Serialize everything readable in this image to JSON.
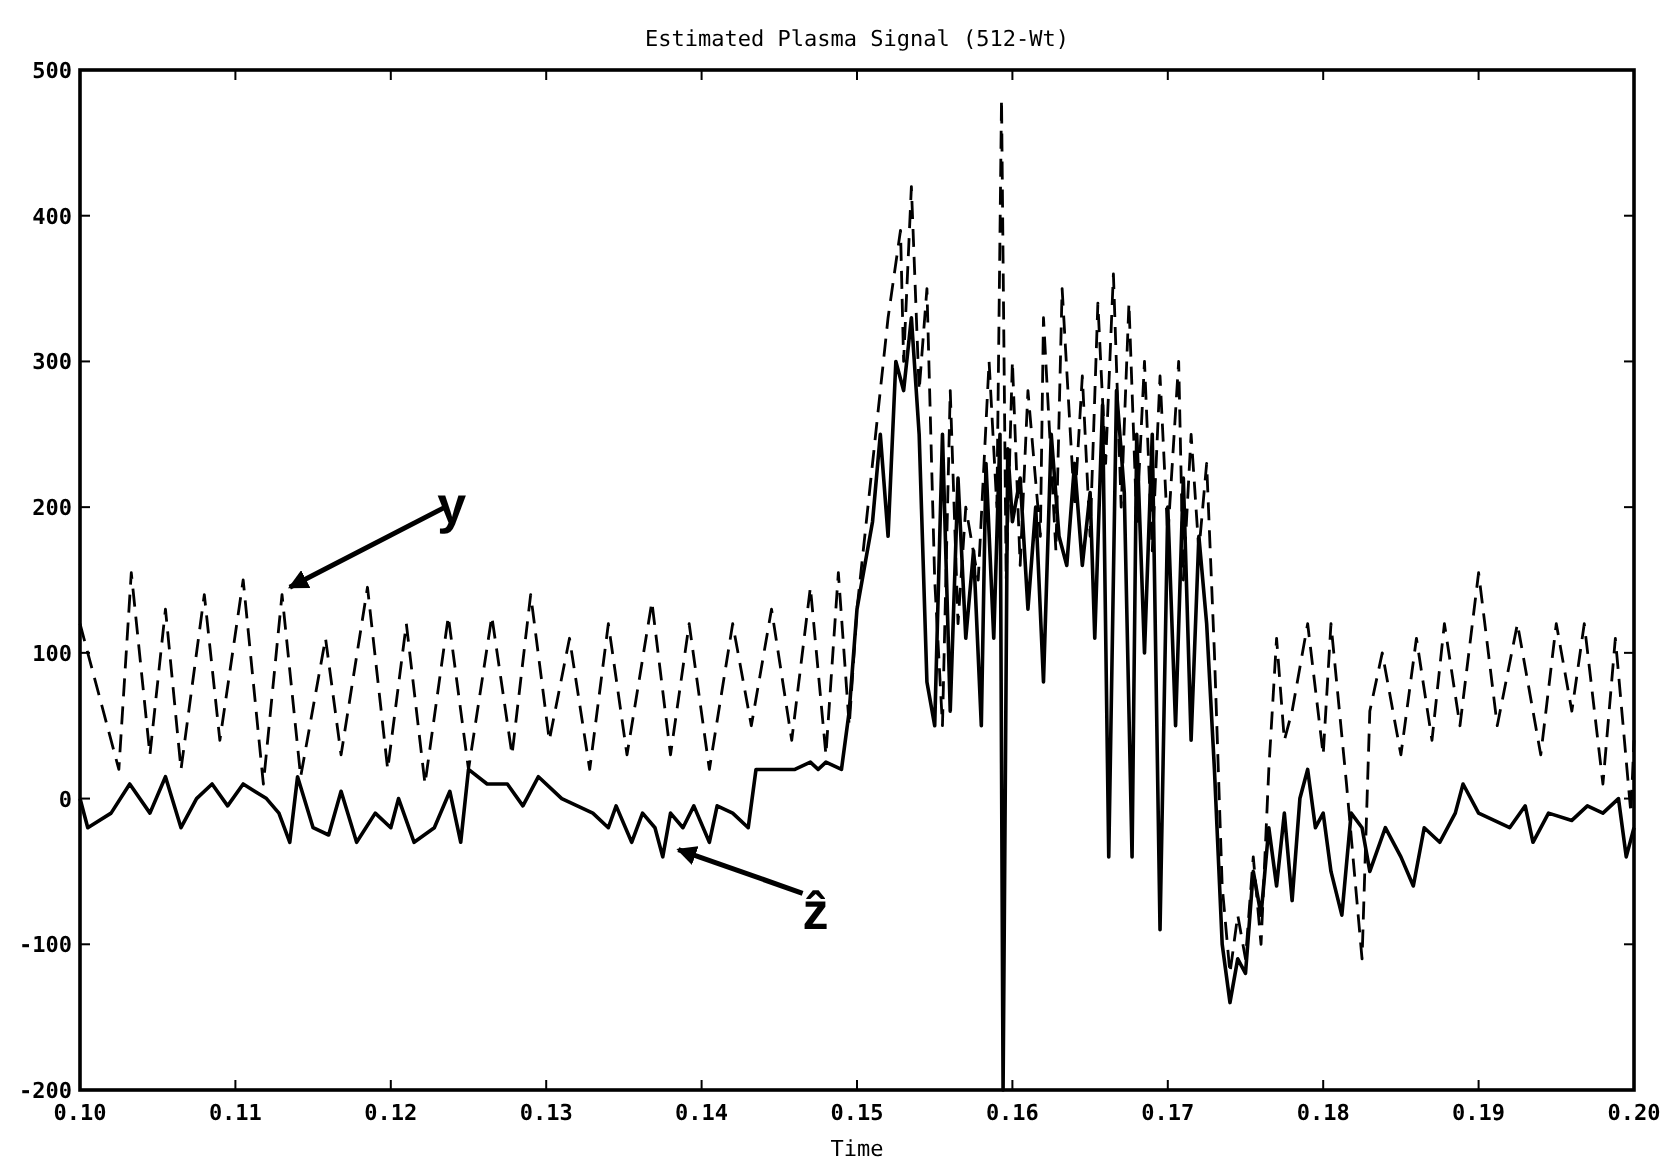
{
  "chart_data": {
    "type": "line",
    "title": "Estimated Plasma Signal (512-Wt)",
    "xlabel": "Time",
    "legend": false,
    "grid": false,
    "xlim": [
      0.1,
      0.2
    ],
    "xticks": [
      {
        "value": 0.1,
        "label": "0.10"
      },
      {
        "value": 0.11,
        "label": "0.11"
      },
      {
        "value": 0.12,
        "label": "0.12"
      },
      {
        "value": 0.13,
        "label": "0.13"
      },
      {
        "value": 0.14,
        "label": "0.14"
      },
      {
        "value": 0.15,
        "label": "0.15"
      },
      {
        "value": 0.16,
        "label": "0.16"
      },
      {
        "value": 0.17,
        "label": "0.17"
      },
      {
        "value": 0.18,
        "label": "0.18"
      },
      {
        "value": 0.19,
        "label": "0.19"
      },
      {
        "value": 0.2,
        "label": "0.20"
      }
    ],
    "ylim": [
      -200,
      500
    ],
    "yticks": [
      -200,
      -100,
      0,
      100,
      200,
      300,
      400,
      500
    ],
    "series": [
      {
        "name": "y",
        "color": "#000000",
        "line_style": "dashed",
        "x": [
          0.1,
          0.1015,
          0.1025,
          0.1033,
          0.1045,
          0.1055,
          0.1065,
          0.108,
          0.109,
          0.1105,
          0.1118,
          0.113,
          0.1142,
          0.1158,
          0.1168,
          0.1185,
          0.1198,
          0.121,
          0.1222,
          0.1237,
          0.125,
          0.1265,
          0.1278,
          0.129,
          0.1302,
          0.1315,
          0.1328,
          0.134,
          0.1352,
          0.1368,
          0.138,
          0.1392,
          0.1405,
          0.142,
          0.1432,
          0.1445,
          0.1458,
          0.147,
          0.148,
          0.1488,
          0.1495,
          0.15,
          0.151,
          0.152,
          0.1528,
          0.153,
          0.1535,
          0.154,
          0.1545,
          0.155,
          0.1555,
          0.156,
          0.1565,
          0.157,
          0.1578,
          0.1585,
          0.159,
          0.1593,
          0.1596,
          0.16,
          0.1605,
          0.161,
          0.1618,
          0.162,
          0.1628,
          0.1632,
          0.164,
          0.1645,
          0.165,
          0.1655,
          0.166,
          0.1665,
          0.167,
          0.1675,
          0.168,
          0.1685,
          0.169,
          0.1695,
          0.17,
          0.1707,
          0.171,
          0.1715,
          0.172,
          0.1725,
          0.173,
          0.1735,
          0.174,
          0.1745,
          0.175,
          0.1755,
          0.176,
          0.1765,
          0.177,
          0.1775,
          0.178,
          0.179,
          0.18,
          0.1805,
          0.1815,
          0.1825,
          0.183,
          0.1838,
          0.185,
          0.186,
          0.187,
          0.1878,
          0.1888,
          0.19,
          0.1912,
          0.1925,
          0.194,
          0.195,
          0.196,
          0.1968,
          0.198,
          0.1988,
          0.1998,
          0.2
        ],
        "values": [
          120,
          60,
          20,
          155,
          30,
          130,
          20,
          140,
          40,
          150,
          10,
          140,
          15,
          110,
          30,
          145,
          20,
          120,
          10,
          125,
          20,
          125,
          30,
          140,
          40,
          110,
          20,
          120,
          30,
          135,
          30,
          120,
          20,
          120,
          50,
          130,
          40,
          145,
          30,
          155,
          50,
          130,
          230,
          330,
          390,
          300,
          420,
          280,
          350,
          150,
          50,
          280,
          120,
          200,
          150,
          300,
          200,
          480,
          150,
          300,
          160,
          280,
          180,
          330,
          170,
          350,
          200,
          290,
          180,
          340,
          230,
          360,
          200,
          340,
          190,
          300,
          170,
          290,
          180,
          300,
          150,
          250,
          170,
          230,
          100,
          -60,
          -120,
          -80,
          -110,
          -40,
          -100,
          20,
          110,
          40,
          60,
          120,
          30,
          120,
          10,
          -110,
          60,
          100,
          30,
          110,
          40,
          120,
          50,
          155,
          50,
          120,
          30,
          120,
          60,
          120,
          10,
          110,
          -10,
          40
        ]
      },
      {
        "name": "ẑ",
        "color": "#000000",
        "line_style": "solid",
        "x": [
          0.1,
          0.1005,
          0.102,
          0.1032,
          0.1045,
          0.1055,
          0.1065,
          0.1075,
          0.1085,
          0.1095,
          0.1105,
          0.112,
          0.1128,
          0.1135,
          0.114,
          0.115,
          0.116,
          0.1168,
          0.1178,
          0.119,
          0.12,
          0.1205,
          0.1215,
          0.1228,
          0.1238,
          0.1245,
          0.125,
          0.1262,
          0.1275,
          0.1285,
          0.1295,
          0.131,
          0.132,
          0.133,
          0.134,
          0.1345,
          0.1355,
          0.1362,
          0.137,
          0.1375,
          0.138,
          0.1388,
          0.1395,
          0.1405,
          0.141,
          0.142,
          0.143,
          0.1435,
          0.144,
          0.146,
          0.147,
          0.1475,
          0.148,
          0.149,
          0.1495,
          0.15,
          0.151,
          0.1515,
          0.152,
          0.1525,
          0.153,
          0.1535,
          0.154,
          0.1545,
          0.155,
          0.1555,
          0.156,
          0.1565,
          0.157,
          0.1575,
          0.158,
          0.1583,
          0.1588,
          0.1592,
          0.1594,
          0.1597,
          0.16,
          0.1605,
          0.161,
          0.1615,
          0.162,
          0.1625,
          0.163,
          0.1635,
          0.164,
          0.1645,
          0.165,
          0.1653,
          0.1658,
          0.1662,
          0.1667,
          0.1672,
          0.1677,
          0.168,
          0.1685,
          0.169,
          0.1695,
          0.17,
          0.1705,
          0.171,
          0.1715,
          0.172,
          0.1725,
          0.173,
          0.1735,
          0.174,
          0.1745,
          0.175,
          0.1755,
          0.176,
          0.1765,
          0.177,
          0.1775,
          0.178,
          0.1785,
          0.179,
          0.1795,
          0.18,
          0.1805,
          0.1812,
          0.1818,
          0.1825,
          0.183,
          0.184,
          0.185,
          0.1858,
          0.1865,
          0.1875,
          0.1885,
          0.189,
          0.19,
          0.191,
          0.192,
          0.193,
          0.1935,
          0.1945,
          0.196,
          0.197,
          0.198,
          0.199,
          0.1995,
          0.2
        ],
        "values": [
          0,
          -20,
          -10,
          10,
          -10,
          15,
          -20,
          0,
          10,
          -5,
          10,
          0,
          -10,
          -30,
          15,
          -20,
          -25,
          5,
          -30,
          -10,
          -20,
          0,
          -30,
          -20,
          5,
          -30,
          20,
          10,
          10,
          -5,
          15,
          0,
          -5,
          -10,
          -20,
          -5,
          -30,
          -10,
          -20,
          -40,
          -10,
          -20,
          -5,
          -30,
          -5,
          -10,
          -20,
          20,
          20,
          20,
          25,
          20,
          25,
          20,
          60,
          130,
          190,
          250,
          180,
          300,
          280,
          330,
          250,
          80,
          50,
          250,
          60,
          220,
          110,
          170,
          50,
          230,
          110,
          250,
          -200,
          240,
          190,
          220,
          130,
          200,
          80,
          250,
          180,
          160,
          230,
          160,
          210,
          110,
          270,
          -40,
          280,
          210,
          -40,
          250,
          100,
          250,
          -90,
          200,
          50,
          220,
          40,
          180,
          120,
          20,
          -100,
          -140,
          -110,
          -120,
          -50,
          -80,
          -20,
          -60,
          -10,
          -70,
          0,
          20,
          -20,
          -10,
          -50,
          -80,
          -10,
          -20,
          -50,
          -20,
          -40,
          -60,
          -20,
          -30,
          -10,
          10,
          -10,
          -15,
          -20,
          -5,
          -30,
          -10,
          -15,
          -5,
          -10,
          0,
          -40,
          -20
        ]
      }
    ]
  }
}
